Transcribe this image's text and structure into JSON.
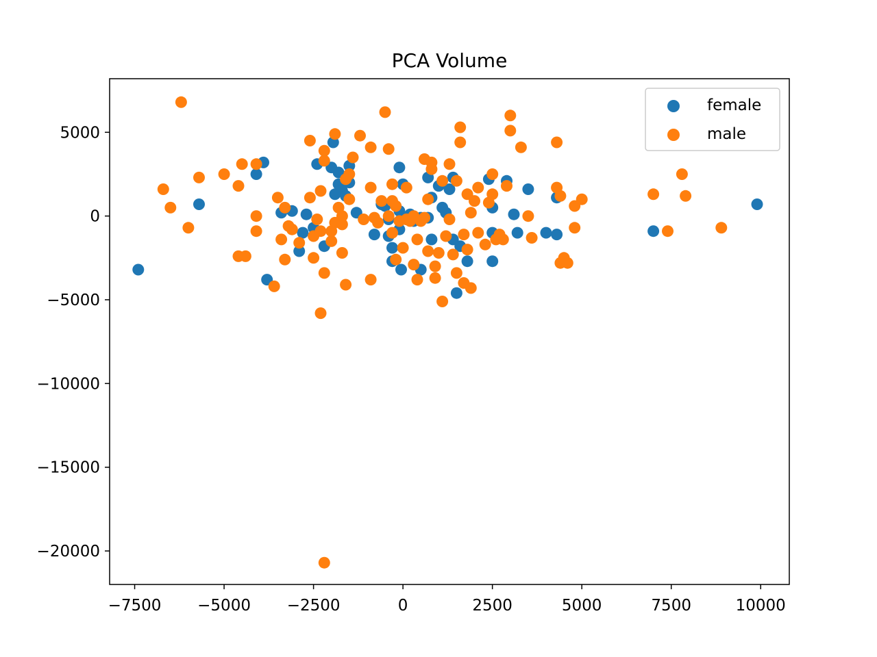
{
  "chart_data": {
    "type": "scatter",
    "title": "PCA Volume",
    "xlabel": "",
    "ylabel": "",
    "xlim": [
      -8200,
      10800
    ],
    "ylim": [
      -22000,
      8200
    ],
    "xticks": [
      -7500,
      -5000,
      -2500,
      0,
      2500,
      5000,
      7500,
      10000
    ],
    "xtick_labels": [
      "−7500",
      "−5000",
      "−2500",
      "0",
      "2500",
      "5000",
      "7500",
      "10000"
    ],
    "yticks": [
      5000,
      0,
      -5000,
      -10000,
      -15000,
      -20000
    ],
    "ytick_labels": [
      "5000",
      "0",
      "−5000",
      "−10000",
      "−15000",
      "−20000"
    ],
    "grid": false,
    "legend_position": "top-right",
    "series": [
      {
        "name": "female",
        "color": "#1f77b4",
        "points": [
          [
            -7400,
            -3200
          ],
          [
            -5700,
            700
          ],
          [
            -4100,
            2500
          ],
          [
            -3900,
            3200
          ],
          [
            -3800,
            -3800
          ],
          [
            -3400,
            200
          ],
          [
            -3100,
            300
          ],
          [
            -2900,
            -2100
          ],
          [
            -2800,
            -1000
          ],
          [
            -2700,
            100
          ],
          [
            -2500,
            -700
          ],
          [
            -2400,
            3100
          ],
          [
            -2200,
            -1800
          ],
          [
            -2000,
            2900
          ],
          [
            -1950,
            4400
          ],
          [
            -1900,
            1300
          ],
          [
            -1800,
            2600
          ],
          [
            -1800,
            1900
          ],
          [
            -1700,
            1500
          ],
          [
            -1600,
            1200
          ],
          [
            -1500,
            3000
          ],
          [
            -1500,
            2000
          ],
          [
            -1300,
            200
          ],
          [
            -800,
            -1100
          ],
          [
            -600,
            700
          ],
          [
            -500,
            600
          ],
          [
            -400,
            -200
          ],
          [
            -400,
            -1200
          ],
          [
            -300,
            -1900
          ],
          [
            -300,
            -2700
          ],
          [
            -100,
            2900
          ],
          [
            -100,
            300
          ],
          [
            -100,
            -800
          ],
          [
            -50,
            -3200
          ],
          [
            0,
            1900
          ],
          [
            100,
            -200
          ],
          [
            200,
            100
          ],
          [
            300,
            -300
          ],
          [
            500,
            -3200
          ],
          [
            500,
            -100
          ],
          [
            700,
            -100
          ],
          [
            700,
            2300
          ],
          [
            800,
            1100
          ],
          [
            800,
            -1400
          ],
          [
            1000,
            1800
          ],
          [
            1100,
            500
          ],
          [
            1200,
            200
          ],
          [
            1300,
            1600
          ],
          [
            1400,
            2300
          ],
          [
            1400,
            -1400
          ],
          [
            1500,
            -4600
          ],
          [
            1600,
            -1800
          ],
          [
            1800,
            -2700
          ],
          [
            2400,
            2200
          ],
          [
            2500,
            -1000
          ],
          [
            2500,
            500
          ],
          [
            2500,
            -2700
          ],
          [
            2900,
            2100
          ],
          [
            3100,
            100
          ],
          [
            3200,
            -1000
          ],
          [
            3500,
            1600
          ],
          [
            4000,
            -1000
          ],
          [
            4300,
            -1100
          ],
          [
            4300,
            1100
          ],
          [
            7000,
            -900
          ],
          [
            9900,
            700
          ]
        ]
      },
      {
        "name": "male",
        "color": "#ff7f0e",
        "points": [
          [
            -6200,
            6800
          ],
          [
            -6700,
            1600
          ],
          [
            -6500,
            500
          ],
          [
            -6000,
            -700
          ],
          [
            -5700,
            2300
          ],
          [
            -5000,
            2500
          ],
          [
            -4600,
            1800
          ],
          [
            -4600,
            -2400
          ],
          [
            -4500,
            3100
          ],
          [
            -4400,
            -2400
          ],
          [
            -4100,
            3100
          ],
          [
            -4100,
            0
          ],
          [
            -4100,
            -900
          ],
          [
            -3600,
            -4200
          ],
          [
            -3500,
            1100
          ],
          [
            -3400,
            -1400
          ],
          [
            -3300,
            -2600
          ],
          [
            -3200,
            -600
          ],
          [
            -3100,
            -800
          ],
          [
            -3300,
            500
          ],
          [
            -2900,
            -1600
          ],
          [
            -2600,
            4500
          ],
          [
            -2600,
            1100
          ],
          [
            -2500,
            -1200
          ],
          [
            -2500,
            -2500
          ],
          [
            -2400,
            -200
          ],
          [
            -2300,
            1500
          ],
          [
            -2300,
            -900
          ],
          [
            -2300,
            -5800
          ],
          [
            -2200,
            3900
          ],
          [
            -2200,
            3300
          ],
          [
            -2200,
            -3400
          ],
          [
            -2200,
            -20700
          ],
          [
            -2000,
            -1500
          ],
          [
            -2000,
            -900
          ],
          [
            -1900,
            -400
          ],
          [
            -1900,
            4900
          ],
          [
            -1800,
            500
          ],
          [
            -1700,
            0
          ],
          [
            -1700,
            -500
          ],
          [
            -1700,
            -2200
          ],
          [
            -1600,
            -4100
          ],
          [
            -1600,
            2200
          ],
          [
            -1500,
            2500
          ],
          [
            -1500,
            1000
          ],
          [
            -1400,
            3500
          ],
          [
            -1200,
            4800
          ],
          [
            -1100,
            -200
          ],
          [
            -900,
            1700
          ],
          [
            -900,
            4100
          ],
          [
            -900,
            -3800
          ],
          [
            -800,
            -100
          ],
          [
            -700,
            -400
          ],
          [
            -600,
            900
          ],
          [
            -500,
            6200
          ],
          [
            -400,
            0
          ],
          [
            -400,
            4000
          ],
          [
            -300,
            900
          ],
          [
            -300,
            1900
          ],
          [
            -300,
            -1000
          ],
          [
            -200,
            600
          ],
          [
            -200,
            -2600
          ],
          [
            -100,
            -300
          ],
          [
            0,
            -1900
          ],
          [
            100,
            1700
          ],
          [
            100,
            -200
          ],
          [
            200,
            -300
          ],
          [
            300,
            -2900
          ],
          [
            300,
            0
          ],
          [
            400,
            -3800
          ],
          [
            400,
            -1400
          ],
          [
            500,
            -300
          ],
          [
            600,
            3400
          ],
          [
            600,
            -100
          ],
          [
            700,
            -2100
          ],
          [
            700,
            1000
          ],
          [
            800,
            3200
          ],
          [
            800,
            2800
          ],
          [
            900,
            -3700
          ],
          [
            900,
            -3000
          ],
          [
            1000,
            -2200
          ],
          [
            1100,
            -5100
          ],
          [
            1100,
            2100
          ],
          [
            1200,
            -1200
          ],
          [
            1300,
            -200
          ],
          [
            1300,
            3100
          ],
          [
            1400,
            -2300
          ],
          [
            1500,
            2100
          ],
          [
            1500,
            -3400
          ],
          [
            1600,
            5300
          ],
          [
            1600,
            4400
          ],
          [
            1700,
            -4000
          ],
          [
            1700,
            -1100
          ],
          [
            1800,
            -2000
          ],
          [
            1800,
            1300
          ],
          [
            1900,
            -4300
          ],
          [
            1900,
            200
          ],
          [
            2000,
            900
          ],
          [
            2100,
            1700
          ],
          [
            2100,
            -1000
          ],
          [
            2300,
            -1700
          ],
          [
            2400,
            800
          ],
          [
            2500,
            2500
          ],
          [
            2500,
            1300
          ],
          [
            2600,
            -1400
          ],
          [
            2700,
            -1100
          ],
          [
            2800,
            -1400
          ],
          [
            2900,
            1800
          ],
          [
            3000,
            6000
          ],
          [
            3000,
            5100
          ],
          [
            3300,
            4100
          ],
          [
            3500,
            0
          ],
          [
            3600,
            -1300
          ],
          [
            4300,
            1700
          ],
          [
            4300,
            4400
          ],
          [
            4400,
            1200
          ],
          [
            4400,
            -2800
          ],
          [
            4500,
            -2500
          ],
          [
            4600,
            -2800
          ],
          [
            4800,
            600
          ],
          [
            4800,
            -700
          ],
          [
            5000,
            1000
          ],
          [
            7000,
            1300
          ],
          [
            7400,
            -900
          ],
          [
            7800,
            2500
          ],
          [
            7900,
            1200
          ],
          [
            8900,
            -700
          ]
        ]
      }
    ]
  }
}
